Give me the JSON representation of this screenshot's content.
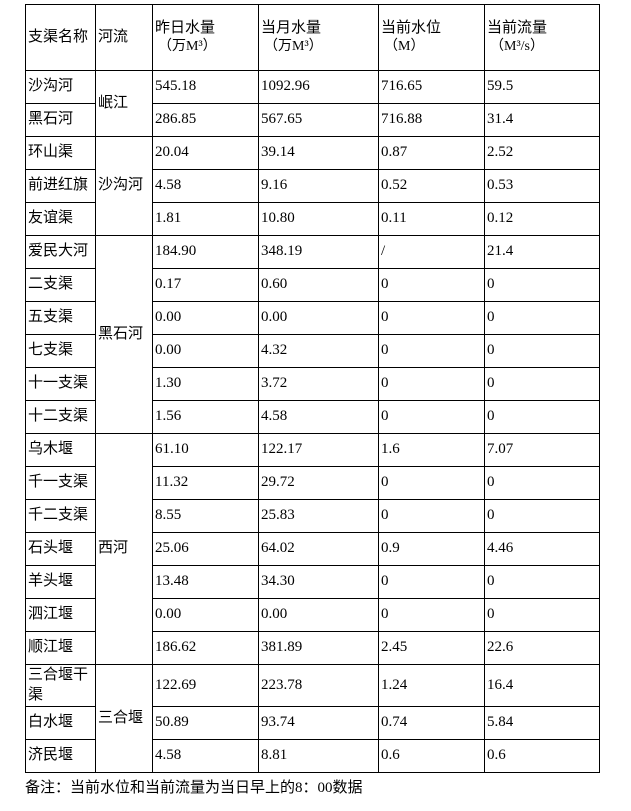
{
  "table": {
    "header": {
      "columns": [
        {
          "label": "支渠名称",
          "unit": ""
        },
        {
          "label": "河流",
          "unit": ""
        },
        {
          "label": "昨日水量",
          "unit": "（万M³）"
        },
        {
          "label": "当月水量",
          "unit": "（万M³）"
        },
        {
          "label": "当前水位",
          "unit": "（M）"
        },
        {
          "label": "当前流量",
          "unit": "（M³/s）"
        }
      ]
    },
    "river_groups": [
      {
        "river": "岷江",
        "row_count": 2
      },
      {
        "river": "沙沟河",
        "row_count": 3
      },
      {
        "river": "黑石河",
        "row_count": 6
      },
      {
        "river": "西河",
        "row_count": 7
      },
      {
        "river": "三合堰",
        "row_count": 3
      }
    ],
    "rows": [
      {
        "name": "沙沟河",
        "yesterday_volume": "545.18",
        "month_volume": "1092.96",
        "water_level": "716.65",
        "flow": "59.5"
      },
      {
        "name": "黑石河",
        "yesterday_volume": "286.85",
        "month_volume": "567.65",
        "water_level": "716.88",
        "flow": "31.4"
      },
      {
        "name": "环山渠",
        "yesterday_volume": "20.04",
        "month_volume": "39.14",
        "water_level": "0.87",
        "flow": "2.52"
      },
      {
        "name": "前进红旗",
        "yesterday_volume": "4.58",
        "month_volume": "9.16",
        "water_level": "0.52",
        "flow": "0.53"
      },
      {
        "name": "友谊渠",
        "yesterday_volume": "1.81",
        "month_volume": "10.80",
        "water_level": "0.11",
        "flow": "0.12"
      },
      {
        "name": "爱民大河",
        "yesterday_volume": "184.90",
        "month_volume": "348.19",
        "water_level": "/",
        "flow": "21.4"
      },
      {
        "name": "二支渠",
        "yesterday_volume": "0.17",
        "month_volume": "0.60",
        "water_level": "0",
        "flow": "0"
      },
      {
        "name": "五支渠",
        "yesterday_volume": "0.00",
        "month_volume": "0.00",
        "water_level": "0",
        "flow": "0"
      },
      {
        "name": "七支渠",
        "yesterday_volume": "0.00",
        "month_volume": "4.32",
        "water_level": "0",
        "flow": "0"
      },
      {
        "name": "十一支渠",
        "yesterday_volume": "1.30",
        "month_volume": "3.72",
        "water_level": "0",
        "flow": "0"
      },
      {
        "name": "十二支渠",
        "yesterday_volume": "1.56",
        "month_volume": "4.58",
        "water_level": "0",
        "flow": "0"
      },
      {
        "name": "乌木堰",
        "yesterday_volume": "61.10",
        "month_volume": "122.17",
        "water_level": "1.6",
        "flow": "7.07"
      },
      {
        "name": "千一支渠",
        "yesterday_volume": "11.32",
        "month_volume": "29.72",
        "water_level": "0",
        "flow": "0"
      },
      {
        "name": "千二支渠",
        "yesterday_volume": "8.55",
        "month_volume": "25.83",
        "water_level": "0",
        "flow": "0"
      },
      {
        "name": "石头堰",
        "yesterday_volume": "25.06",
        "month_volume": "64.02",
        "water_level": "0.9",
        "flow": "4.46"
      },
      {
        "name": "羊头堰",
        "yesterday_volume": "13.48",
        "month_volume": "34.30",
        "water_level": "0",
        "flow": "0"
      },
      {
        "name": "泗江堰",
        "yesterday_volume": "0.00",
        "month_volume": "0.00",
        "water_level": "0",
        "flow": "0"
      },
      {
        "name": "顺江堰",
        "yesterday_volume": "186.62",
        "month_volume": "381.89",
        "water_level": "2.45",
        "flow": "22.6"
      },
      {
        "name": "三合堰干渠",
        "yesterday_volume": "122.69",
        "month_volume": "223.78",
        "water_level": "1.24",
        "flow": "16.4"
      },
      {
        "name": "白水堰",
        "yesterday_volume": "50.89",
        "month_volume": "93.74",
        "water_level": "0.74",
        "flow": "5.84"
      },
      {
        "name": "济民堰",
        "yesterday_volume": "4.58",
        "month_volume": "8.81",
        "water_level": "0.6",
        "flow": "0.6"
      }
    ]
  },
  "footer": {
    "note": "备注：当前水位和当前流量为当日早上的8：00数据"
  },
  "colors": {
    "border": "#000000",
    "text": "#000000",
    "background": "#ffffff"
  }
}
